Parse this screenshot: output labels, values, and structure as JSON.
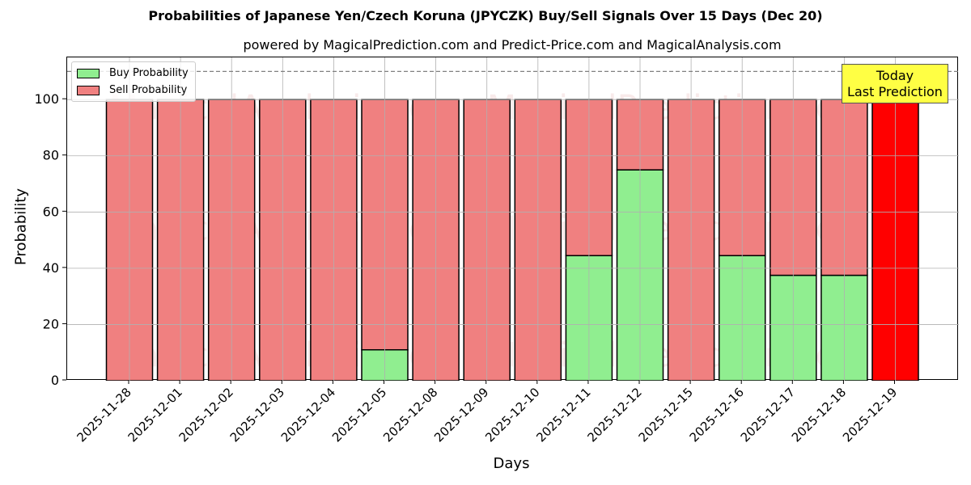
{
  "header": {
    "title": "Probabilities of Japanese Yen/Czech Koruna (JPYCZK) Buy/Sell Signals Over 15 Days (Dec 20)",
    "subtitle": "powered by MagicalPrediction.com and Predict-Price.com and MagicalAnalysis.com"
  },
  "legend": {
    "buy_label": "Buy Probability",
    "sell_label": "Sell Probability"
  },
  "annotation": {
    "line1": "Today",
    "line2": "Last Prediction"
  },
  "watermarks": [
    "MagicalAnalysis.com",
    "MagicalPrediction.com"
  ],
  "colors": {
    "buy": "#90ee90",
    "sell": "#f08080",
    "today": "#ff0000",
    "annotation_bg": "#ffff44",
    "grid": "#b0b0b0",
    "threshold_line": "#808080"
  },
  "chart_data": {
    "type": "bar",
    "stacked": true,
    "title": "Probabilities of Japanese Yen/Czech Koruna (JPYCZK) Buy/Sell Signals Over 15 Days (Dec 20)",
    "subtitle": "powered by MagicalPrediction.com and Predict-Price.com and MagicalAnalysis.com",
    "xlabel": "Days",
    "ylabel": "Probability",
    "ylim": [
      0,
      115
    ],
    "yticks": [
      0,
      20,
      40,
      60,
      80,
      100
    ],
    "grid": true,
    "legend_position": "upper left",
    "threshold_line": 110,
    "categories": [
      "2025-11-28",
      "2025-12-01",
      "2025-12-02",
      "2025-12-03",
      "2025-12-04",
      "2025-12-05",
      "2025-12-08",
      "2025-12-09",
      "2025-12-10",
      "2025-12-11",
      "2025-12-12",
      "2025-12-15",
      "2025-12-16",
      "2025-12-17",
      "2025-12-18",
      "2025-12-19"
    ],
    "series": [
      {
        "name": "Buy Probability",
        "values": [
          0,
          0,
          0,
          0,
          0,
          11,
          0,
          0,
          0,
          44.5,
          75,
          0,
          44.5,
          37.5,
          37.5,
          0
        ]
      },
      {
        "name": "Sell Probability",
        "values": [
          100,
          100,
          100,
          100,
          100,
          89,
          100,
          100,
          100,
          55.5,
          25,
          100,
          55.5,
          62.5,
          62.5,
          100
        ]
      }
    ],
    "highlight": {
      "category": "2025-12-19",
      "color": "#ff0000",
      "label": "Today Last Prediction"
    }
  }
}
